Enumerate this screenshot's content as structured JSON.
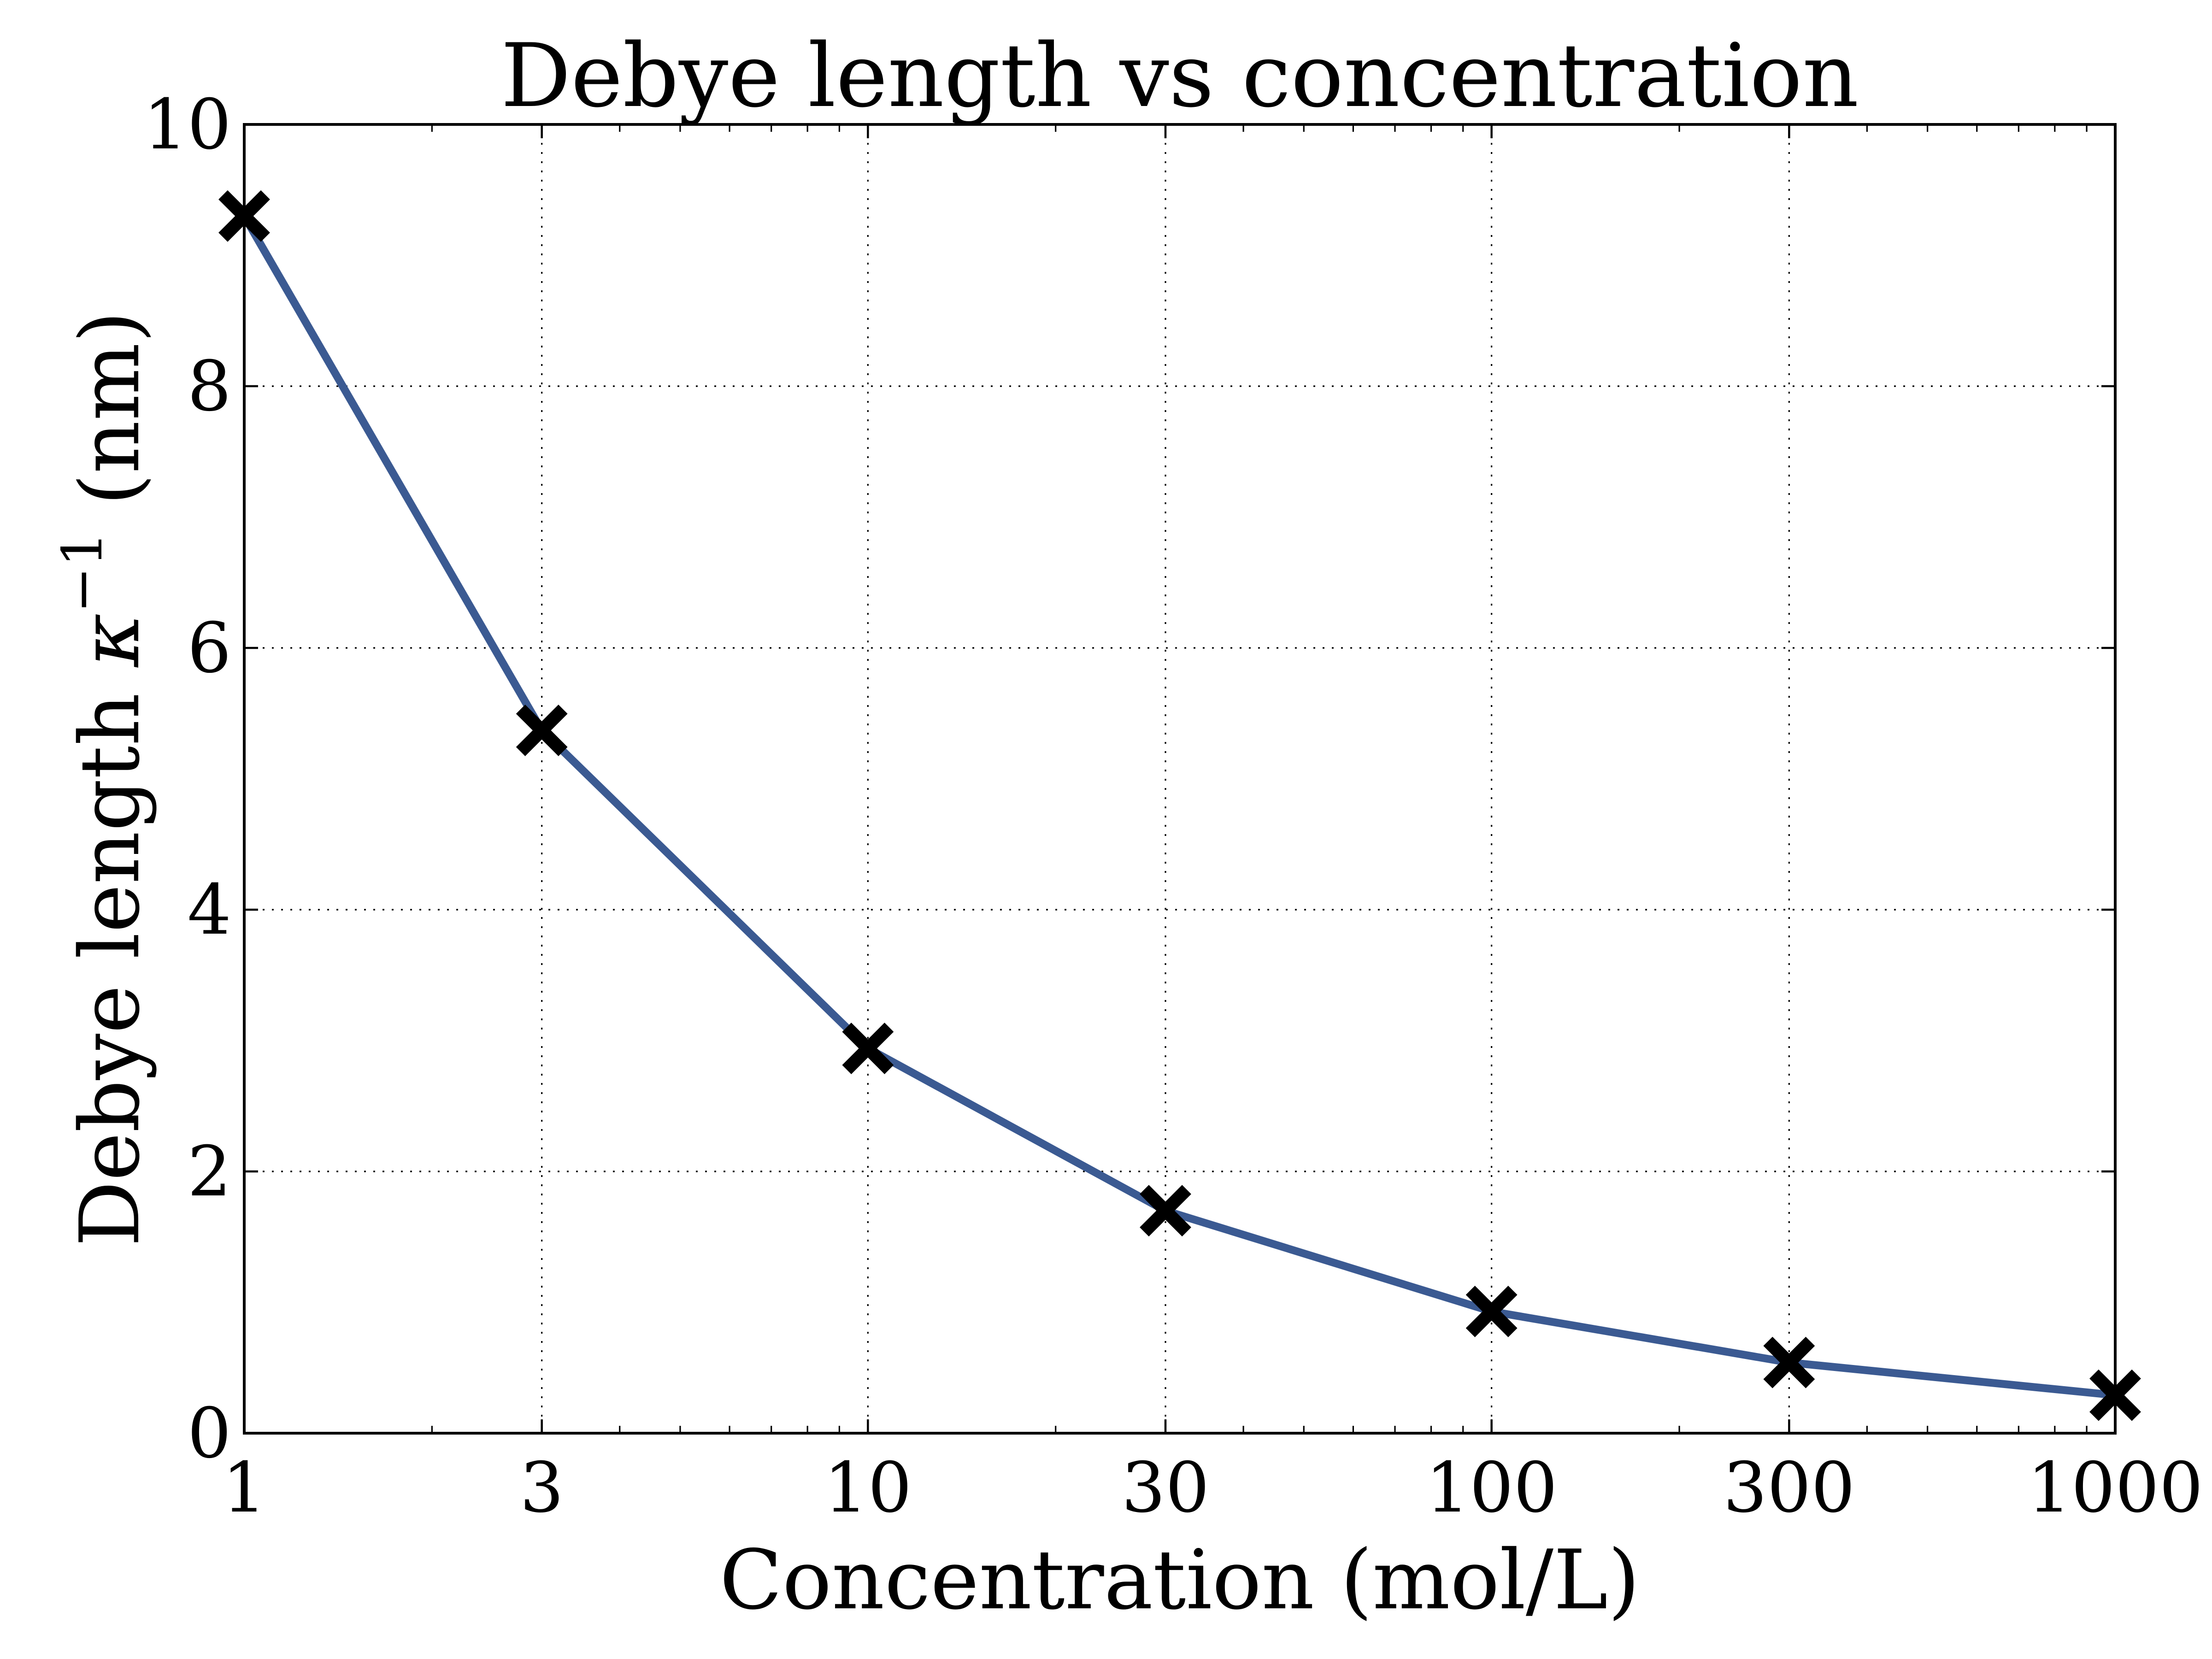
{
  "chart_data": {
    "type": "line",
    "title": "Debye length vs concentration",
    "xlabel": "Concentration (mol/L)",
    "ylabel_prefix": "Debye length ",
    "ylabel_symbol": "κ",
    "ylabel_superscript": "−1",
    "ylabel_suffix": " (nm)",
    "xscale": "log",
    "xlim": [
      1,
      1000
    ],
    "ylim": [
      0,
      10
    ],
    "xticks": [
      1,
      3,
      10,
      30,
      100,
      300,
      1000
    ],
    "xtick_labels": [
      "1",
      "3",
      "10",
      "30",
      "100",
      "300",
      "1000"
    ],
    "yticks": [
      0,
      2,
      4,
      6,
      8,
      10
    ],
    "ytick_labels": [
      "0",
      "2",
      "4",
      "6",
      "8",
      "10"
    ],
    "grid": true,
    "series": [
      {
        "color": "#3b5a92",
        "marker": "x",
        "marker_color": "#000000",
        "x": [
          1,
          3,
          10,
          30,
          100,
          300,
          1000
        ],
        "y": [
          9.3,
          5.37,
          2.94,
          1.7,
          0.93,
          0.54,
          0.29
        ]
      }
    ]
  }
}
